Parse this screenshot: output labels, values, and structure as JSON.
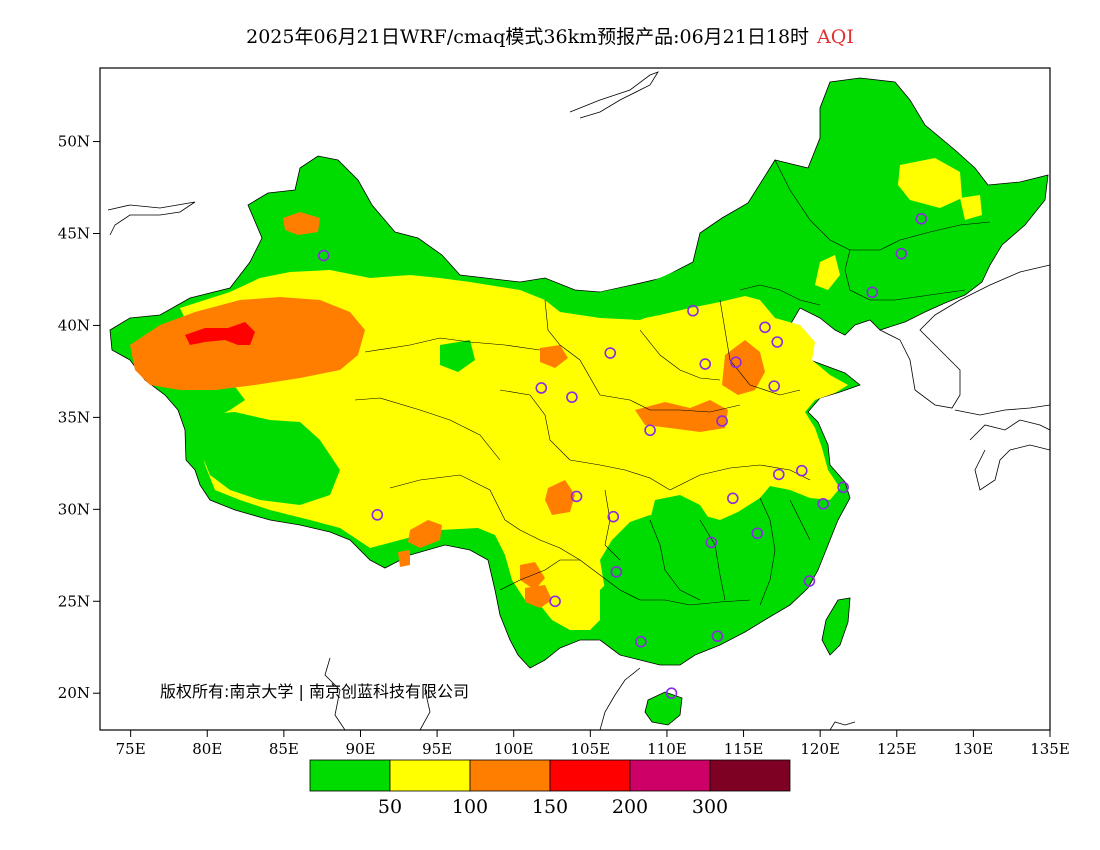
{
  "title": {
    "main": "2025年06月21日WRF/cmaq模式36km预报产品:06月21日18时",
    "variable": "AQI"
  },
  "copyright": "版权所有:南京大学 | 南京创蓝科技有限公司",
  "axes": {
    "lon_labels": [
      "75E",
      "80E",
      "85E",
      "90E",
      "95E",
      "100E",
      "105E",
      "110E",
      "115E",
      "120E",
      "125E",
      "130E",
      "135E"
    ],
    "lat_labels": [
      "50N",
      "45N",
      "40N",
      "35N",
      "30N",
      "25N",
      "20N"
    ],
    "lon_range": [
      73,
      135
    ],
    "lat_range": [
      18,
      54
    ]
  },
  "legend": {
    "colors": [
      "#00dc00",
      "#ffff00",
      "#ff7e00",
      "#ff0000",
      "#cc0066",
      "#7e0023"
    ],
    "labels": [
      "50",
      "100",
      "150",
      "200",
      "300"
    ]
  },
  "stations": [
    {
      "lon": 87.6,
      "lat": 43.8
    },
    {
      "lon": 91.1,
      "lat": 29.7
    },
    {
      "lon": 101.8,
      "lat": 36.6
    },
    {
      "lon": 103.8,
      "lat": 36.1
    },
    {
      "lon": 106.3,
      "lat": 38.5
    },
    {
      "lon": 111.7,
      "lat": 40.8
    },
    {
      "lon": 112.5,
      "lat": 37.9
    },
    {
      "lon": 114.5,
      "lat": 38.0
    },
    {
      "lon": 116.4,
      "lat": 39.9
    },
    {
      "lon": 117.2,
      "lat": 39.1
    },
    {
      "lon": 117.0,
      "lat": 36.7
    },
    {
      "lon": 113.6,
      "lat": 34.8
    },
    {
      "lon": 108.9,
      "lat": 34.3
    },
    {
      "lon": 104.1,
      "lat": 30.7
    },
    {
      "lon": 106.5,
      "lat": 29.6
    },
    {
      "lon": 106.7,
      "lat": 26.6
    },
    {
      "lon": 102.7,
      "lat": 25.0
    },
    {
      "lon": 108.3,
      "lat": 22.8
    },
    {
      "lon": 113.3,
      "lat": 23.1
    },
    {
      "lon": 110.3,
      "lat": 20.0
    },
    {
      "lon": 112.9,
      "lat": 28.2
    },
    {
      "lon": 115.9,
      "lat": 28.7
    },
    {
      "lon": 114.3,
      "lat": 30.6
    },
    {
      "lon": 117.3,
      "lat": 31.9
    },
    {
      "lon": 118.8,
      "lat": 32.1
    },
    {
      "lon": 120.2,
      "lat": 30.3
    },
    {
      "lon": 121.5,
      "lat": 31.2
    },
    {
      "lon": 119.3,
      "lat": 26.1
    },
    {
      "lon": 123.4,
      "lat": 41.8
    },
    {
      "lon": 125.3,
      "lat": 43.9
    },
    {
      "lon": 126.6,
      "lat": 45.8
    }
  ]
}
